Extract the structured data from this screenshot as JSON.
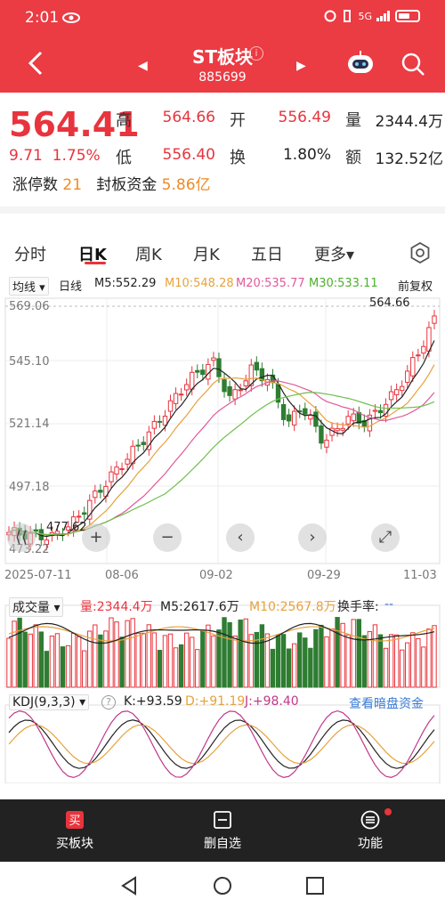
{
  "status_bar": {
    "time": "2:01",
    "network": "5G"
  },
  "header": {
    "title": "ST板块",
    "code": "885699"
  },
  "quote": {
    "price": "564.41",
    "change": "9.71",
    "change_pct": "1.75%",
    "high_label": "高",
    "high": "564.66",
    "low_label": "低",
    "low": "556.40",
    "open_label": "开",
    "open": "556.49",
    "turnover_label": "换",
    "turnover": "1.80%",
    "volume_label": "量",
    "volume": "2344.4万",
    "amount_label": "额",
    "amount": "132.52亿",
    "limit_up_label": "涨停数",
    "limit_up": "21",
    "seal_label": "封板资金",
    "seal": "5.86亿"
  },
  "tabs": [
    "分时",
    "日K",
    "周K",
    "月K",
    "五日",
    "更多▾"
  ],
  "active_tab": "日K",
  "indicators": {
    "select": "均线",
    "period": "日线",
    "m5": "M5:552.29",
    "m10": "M10:548.28",
    "m20": "M20:535.77",
    "m30": "M30:533.11",
    "adjust": "前复权"
  },
  "axis": {
    "y": [
      "569.06",
      "545.10",
      "521.14",
      "497.18",
      "473.22"
    ],
    "x": [
      "2025-07-11",
      "08-06",
      "09-02",
      "09-29",
      "11-03"
    ],
    "max_label": "564.66",
    "min_label": "477.62"
  },
  "volume": {
    "select": "成交量",
    "vol": "量:2344.4万",
    "m5": "M5:2617.6万",
    "m10": "M10:2567.8万",
    "turnover": "换手率:",
    "turnover_val": "--"
  },
  "kdj": {
    "select": "KDJ(9,3,3)",
    "k": "K:+93.59",
    "d": "D:+91.19",
    "j": "J:+98.40",
    "link": "查看暗盘资金"
  },
  "bottom_nav": {
    "buy": "买板块",
    "remove": "删自选",
    "func": "功能"
  },
  "colors": {
    "up": "#e8343d",
    "down": "#2e7d32",
    "brand": "#eb3b43",
    "m5": "#222222",
    "m10": "#e6a23c",
    "m20": "#e05a9a",
    "m30": "#6cbf4a"
  }
}
